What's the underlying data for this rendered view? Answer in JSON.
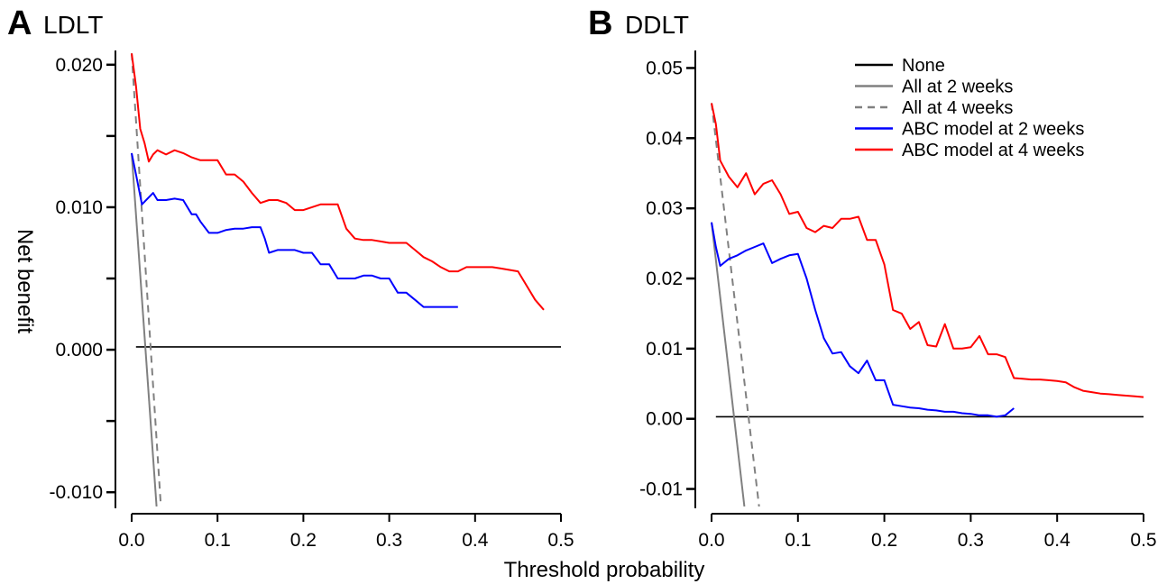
{
  "figure": {
    "xlabel": "Threshold probability",
    "ylabel": "Net benefit"
  },
  "chart_data": [
    {
      "type": "line",
      "panel": "A",
      "title": "LDLT",
      "xlim": [
        0,
        0.5
      ],
      "ylim": [
        -0.011,
        0.021
      ],
      "xticks": [
        0.0,
        0.1,
        0.2,
        0.3,
        0.4,
        0.5
      ],
      "xtick_labels": [
        "0.0",
        "0.1",
        "0.2",
        "0.3",
        "0.4",
        "0.5"
      ],
      "yticks": [
        -0.01,
        -0.005,
        0.0,
        0.005,
        0.01,
        0.015,
        0.02
      ],
      "ytick_labels": [
        "-0.010",
        "",
        "0.000",
        "",
        "0.010",
        "",
        "0.020"
      ],
      "legend": false,
      "series": [
        {
          "name": "None",
          "color": "#000000",
          "dash": "solid",
          "x": [
            0.005,
            0.5
          ],
          "y": [
            0.0002,
            0.0002
          ]
        },
        {
          "name": "All at 2 weeks",
          "color": "#808080",
          "dash": "solid",
          "x": [
            0.0,
            0.029
          ],
          "y": [
            0.0138,
            -0.011
          ]
        },
        {
          "name": "All at 4 weeks",
          "color": "#808080",
          "dash": "dashed",
          "x": [
            0.0,
            0.034
          ],
          "y": [
            0.0208,
            -0.011
          ]
        },
        {
          "name": "ABC model at 2 weeks",
          "color": "#0000ff",
          "dash": "solid",
          "x": [
            0.0,
            0.005,
            0.012,
            0.02,
            0.025,
            0.03,
            0.04,
            0.05,
            0.06,
            0.07,
            0.075,
            0.08,
            0.09,
            0.1,
            0.11,
            0.12,
            0.13,
            0.14,
            0.15,
            0.155,
            0.16,
            0.17,
            0.19,
            0.2,
            0.21,
            0.22,
            0.23,
            0.24,
            0.25,
            0.26,
            0.27,
            0.28,
            0.29,
            0.3,
            0.31,
            0.32,
            0.33,
            0.34,
            0.35,
            0.36,
            0.37,
            0.38
          ],
          "y": [
            0.0138,
            0.0123,
            0.0102,
            0.0107,
            0.011,
            0.0105,
            0.0105,
            0.0106,
            0.0105,
            0.0095,
            0.0095,
            0.009,
            0.0082,
            0.0082,
            0.0084,
            0.0085,
            0.0085,
            0.0086,
            0.0086,
            0.0078,
            0.0068,
            0.007,
            0.007,
            0.0068,
            0.0068,
            0.006,
            0.006,
            0.005,
            0.005,
            0.005,
            0.0052,
            0.0052,
            0.005,
            0.005,
            0.004,
            0.004,
            0.0035,
            0.003,
            0.003,
            0.003,
            0.003,
            0.003
          ]
        },
        {
          "name": "ABC model at 4 weeks",
          "color": "#ff0000",
          "dash": "solid",
          "x": [
            0.0,
            0.005,
            0.01,
            0.015,
            0.02,
            0.025,
            0.03,
            0.04,
            0.05,
            0.06,
            0.07,
            0.08,
            0.09,
            0.1,
            0.11,
            0.12,
            0.13,
            0.14,
            0.15,
            0.16,
            0.17,
            0.18,
            0.19,
            0.2,
            0.21,
            0.22,
            0.23,
            0.24,
            0.25,
            0.26,
            0.27,
            0.28,
            0.29,
            0.3,
            0.31,
            0.32,
            0.33,
            0.34,
            0.35,
            0.36,
            0.37,
            0.38,
            0.39,
            0.4,
            0.41,
            0.42,
            0.43,
            0.44,
            0.45,
            0.46,
            0.47,
            0.48
          ],
          "y": [
            0.0208,
            0.0185,
            0.0155,
            0.0145,
            0.0132,
            0.0137,
            0.014,
            0.0137,
            0.014,
            0.0138,
            0.0135,
            0.0133,
            0.0133,
            0.0133,
            0.0123,
            0.0123,
            0.0118,
            0.011,
            0.0103,
            0.0105,
            0.0105,
            0.0103,
            0.0098,
            0.0098,
            0.01,
            0.0102,
            0.0102,
            0.0102,
            0.0085,
            0.0078,
            0.0077,
            0.0077,
            0.0076,
            0.0075,
            0.0075,
            0.0075,
            0.007,
            0.0065,
            0.0062,
            0.0058,
            0.0055,
            0.0055,
            0.0058,
            0.0058,
            0.0058,
            0.0058,
            0.0057,
            0.0056,
            0.0055,
            0.0045,
            0.0035,
            0.0028
          ]
        }
      ]
    },
    {
      "type": "line",
      "panel": "B",
      "title": "DDLT",
      "xlim": [
        0,
        0.5
      ],
      "ylim": [
        -0.0125,
        0.0525
      ],
      "xticks": [
        0.0,
        0.1,
        0.2,
        0.3,
        0.4,
        0.5
      ],
      "xtick_labels": [
        "0.0",
        "0.1",
        "0.2",
        "0.3",
        "0.4",
        "0.5"
      ],
      "yticks": [
        -0.01,
        0.0,
        0.01,
        0.02,
        0.03,
        0.04,
        0.05
      ],
      "ytick_labels": [
        "-0.01",
        "0.00",
        "0.01",
        "0.02",
        "0.03",
        "0.04",
        "0.05"
      ],
      "legend": true,
      "legend_position": "top-right",
      "series": [
        {
          "name": "None",
          "color": "#000000",
          "dash": "solid",
          "x": [
            0.005,
            0.5
          ],
          "y": [
            0.0003,
            0.0003
          ]
        },
        {
          "name": "All at 2 weeks",
          "color": "#808080",
          "dash": "solid",
          "x": [
            0.0,
            0.038
          ],
          "y": [
            0.028,
            -0.0125
          ]
        },
        {
          "name": "All at 4 weeks",
          "color": "#808080",
          "dash": "dashed",
          "x": [
            0.0,
            0.055
          ],
          "y": [
            0.045,
            -0.0125
          ]
        },
        {
          "name": "ABC model at 2 weeks",
          "color": "#0000ff",
          "dash": "solid",
          "x": [
            0.0,
            0.005,
            0.01,
            0.02,
            0.03,
            0.04,
            0.05,
            0.06,
            0.07,
            0.08,
            0.09,
            0.1,
            0.11,
            0.12,
            0.13,
            0.14,
            0.15,
            0.16,
            0.17,
            0.18,
            0.19,
            0.2,
            0.21,
            0.22,
            0.23,
            0.24,
            0.25,
            0.26,
            0.27,
            0.28,
            0.29,
            0.3,
            0.31,
            0.32,
            0.33,
            0.34,
            0.35
          ],
          "y": [
            0.028,
            0.0245,
            0.0218,
            0.0228,
            0.0233,
            0.024,
            0.0245,
            0.025,
            0.0222,
            0.0228,
            0.0233,
            0.0235,
            0.02,
            0.0155,
            0.0115,
            0.0093,
            0.0095,
            0.0075,
            0.0065,
            0.0083,
            0.0055,
            0.0055,
            0.002,
            0.0018,
            0.0016,
            0.0015,
            0.0013,
            0.0012,
            0.001,
            0.001,
            0.0008,
            0.0007,
            0.0005,
            0.0005,
            0.0003,
            0.0005,
            0.0015
          ]
        },
        {
          "name": "ABC model at 4 weeks",
          "color": "#ff0000",
          "dash": "solid",
          "x": [
            0.0,
            0.005,
            0.01,
            0.02,
            0.03,
            0.04,
            0.05,
            0.06,
            0.07,
            0.08,
            0.09,
            0.1,
            0.11,
            0.12,
            0.13,
            0.14,
            0.15,
            0.16,
            0.17,
            0.18,
            0.19,
            0.2,
            0.21,
            0.22,
            0.23,
            0.24,
            0.25,
            0.26,
            0.27,
            0.28,
            0.29,
            0.3,
            0.31,
            0.32,
            0.33,
            0.34,
            0.35,
            0.36,
            0.37,
            0.38,
            0.39,
            0.4,
            0.41,
            0.42,
            0.43,
            0.44,
            0.45,
            0.46,
            0.47,
            0.48,
            0.49,
            0.5
          ],
          "y": [
            0.045,
            0.042,
            0.0368,
            0.0345,
            0.033,
            0.035,
            0.032,
            0.0335,
            0.034,
            0.032,
            0.0292,
            0.0295,
            0.0272,
            0.0266,
            0.0275,
            0.0272,
            0.0285,
            0.0285,
            0.0288,
            0.0255,
            0.0255,
            0.022,
            0.0155,
            0.015,
            0.0128,
            0.0138,
            0.0105,
            0.0103,
            0.0135,
            0.01,
            0.01,
            0.0102,
            0.0118,
            0.0092,
            0.0092,
            0.0088,
            0.0058,
            0.0057,
            0.0056,
            0.0056,
            0.0055,
            0.0054,
            0.0052,
            0.0045,
            0.004,
            0.0038,
            0.0036,
            0.0035,
            0.0034,
            0.0033,
            0.0032,
            0.0031
          ]
        }
      ]
    }
  ]
}
